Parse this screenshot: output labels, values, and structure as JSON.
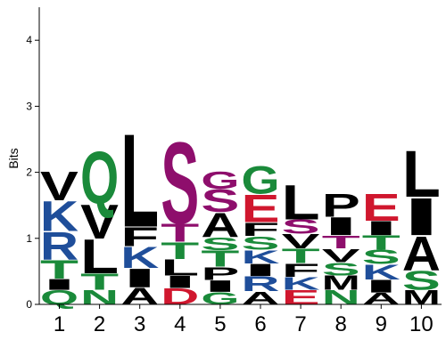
{
  "chart_data": {
    "type": "sequence-logo",
    "ylabel": "Bits",
    "ylim": [
      0,
      4.5
    ],
    "y_ticks": [
      "0",
      "1",
      "2",
      "3",
      "4"
    ],
    "x_ticks": [
      "1",
      "2",
      "3",
      "4",
      "5",
      "6",
      "7",
      "8",
      "9",
      "10"
    ],
    "colors": {
      "black": "#000000",
      "blue": "#1f4e9a",
      "green": "#1a8a3a",
      "purple": "#8e0e6c",
      "red": "#d0172e"
    },
    "positions": [
      {
        "position": "1",
        "letters": [
          {
            "char": "Q",
            "bits": 0.22,
            "color": "green"
          },
          {
            "char": "I",
            "bits": 0.17,
            "color": "black"
          },
          {
            "char": "T",
            "bits": 0.29,
            "color": "green"
          },
          {
            "char": "R",
            "bits": 0.43,
            "color": "blue"
          },
          {
            "char": "K",
            "bits": 0.47,
            "color": "blue"
          },
          {
            "char": "V",
            "bits": 0.45,
            "color": "black"
          }
        ]
      },
      {
        "position": "2",
        "letters": [
          {
            "char": "N",
            "bits": 0.22,
            "color": "green"
          },
          {
            "char": "T",
            "bits": 0.25,
            "color": "green"
          },
          {
            "char": "L",
            "bits": 0.53,
            "color": "black"
          },
          {
            "char": "V",
            "bits": 0.53,
            "color": "black"
          },
          {
            "char": "Q",
            "bits": 0.81,
            "color": "green"
          }
        ]
      },
      {
        "position": "3",
        "letters": [
          {
            "char": "A",
            "bits": 0.26,
            "color": "black"
          },
          {
            "char": "I",
            "bits": 0.29,
            "color": "black"
          },
          {
            "char": "K",
            "bits": 0.33,
            "color": "blue"
          },
          {
            "char": "F",
            "bits": 0.3,
            "color": "black"
          },
          {
            "char": "L",
            "bits": 1.45,
            "color": "black"
          }
        ]
      },
      {
        "position": "4",
        "letters": [
          {
            "char": "D",
            "bits": 0.25,
            "color": "red"
          },
          {
            "char": "I",
            "bits": 0.19,
            "color": "black"
          },
          {
            "char": "L",
            "bits": 0.25,
            "color": "black"
          },
          {
            "char": "T",
            "bits": 0.26,
            "color": "green"
          },
          {
            "char": "T",
            "bits": 0.28,
            "color": "purple"
          },
          {
            "char": "S",
            "bits": 1.27,
            "color": "purple"
          }
        ]
      },
      {
        "position": "5",
        "letters": [
          {
            "char": "G",
            "bits": 0.19,
            "color": "green"
          },
          {
            "char": "I",
            "bits": 0.18,
            "color": "black"
          },
          {
            "char": "P",
            "bits": 0.2,
            "color": "black"
          },
          {
            "char": "T",
            "bits": 0.25,
            "color": "green"
          },
          {
            "char": "S",
            "bits": 0.2,
            "color": "green"
          },
          {
            "char": "A",
            "bits": 0.38,
            "color": "black"
          },
          {
            "char": "S",
            "bits": 0.35,
            "color": "purple"
          },
          {
            "char": "G",
            "bits": 0.27,
            "color": "purple"
          }
        ]
      },
      {
        "position": "6",
        "letters": [
          {
            "char": "A",
            "bits": 0.2,
            "color": "black"
          },
          {
            "char": "R",
            "bits": 0.23,
            "color": "blue"
          },
          {
            "char": "I",
            "bits": 0.19,
            "color": "black"
          },
          {
            "char": "K",
            "bits": 0.21,
            "color": "blue"
          },
          {
            "char": "S",
            "bits": 0.21,
            "color": "green"
          },
          {
            "char": "F",
            "bits": 0.21,
            "color": "black"
          },
          {
            "char": "E",
            "bits": 0.43,
            "color": "red"
          },
          {
            "char": "G",
            "bits": 0.43,
            "color": "green"
          }
        ]
      },
      {
        "position": "7",
        "letters": [
          {
            "char": "E",
            "bits": 0.22,
            "color": "red"
          },
          {
            "char": "K",
            "bits": 0.2,
            "color": "blue"
          },
          {
            "char": "F",
            "bits": 0.21,
            "color": "black"
          },
          {
            "char": "T",
            "bits": 0.22,
            "color": "green"
          },
          {
            "char": "V",
            "bits": 0.22,
            "color": "black"
          },
          {
            "char": "S",
            "bits": 0.22,
            "color": "purple"
          },
          {
            "char": "L",
            "bits": 0.54,
            "color": "black"
          }
        ]
      },
      {
        "position": "8",
        "letters": [
          {
            "char": "N",
            "bits": 0.22,
            "color": "green"
          },
          {
            "char": "M",
            "bits": 0.22,
            "color": "black"
          },
          {
            "char": "S",
            "bits": 0.2,
            "color": "green"
          },
          {
            "char": "V",
            "bits": 0.21,
            "color": "black"
          },
          {
            "char": "T",
            "bits": 0.2,
            "color": "purple"
          },
          {
            "char": "I",
            "bits": 0.28,
            "color": "black"
          },
          {
            "char": "P",
            "bits": 0.36,
            "color": "black"
          }
        ]
      },
      {
        "position": "9",
        "letters": [
          {
            "char": "A",
            "bits": 0.18,
            "color": "black"
          },
          {
            "char": "I",
            "bits": 0.2,
            "color": "black"
          },
          {
            "char": "K",
            "bits": 0.23,
            "color": "blue"
          },
          {
            "char": "S",
            "bits": 0.22,
            "color": "green"
          },
          {
            "char": "T",
            "bits": 0.22,
            "color": "green"
          },
          {
            "char": "I",
            "bits": 0.22,
            "color": "black"
          },
          {
            "char": "E",
            "bits": 0.42,
            "color": "red"
          }
        ]
      },
      {
        "position": "10",
        "letters": [
          {
            "char": "M",
            "bits": 0.22,
            "color": "black"
          },
          {
            "char": "S",
            "bits": 0.3,
            "color": "green"
          },
          {
            "char": "A",
            "bits": 0.53,
            "color": "black"
          },
          {
            "char": "I",
            "bits": 0.58,
            "color": "black"
          },
          {
            "char": "L",
            "bits": 0.72,
            "color": "black"
          }
        ]
      }
    ]
  }
}
